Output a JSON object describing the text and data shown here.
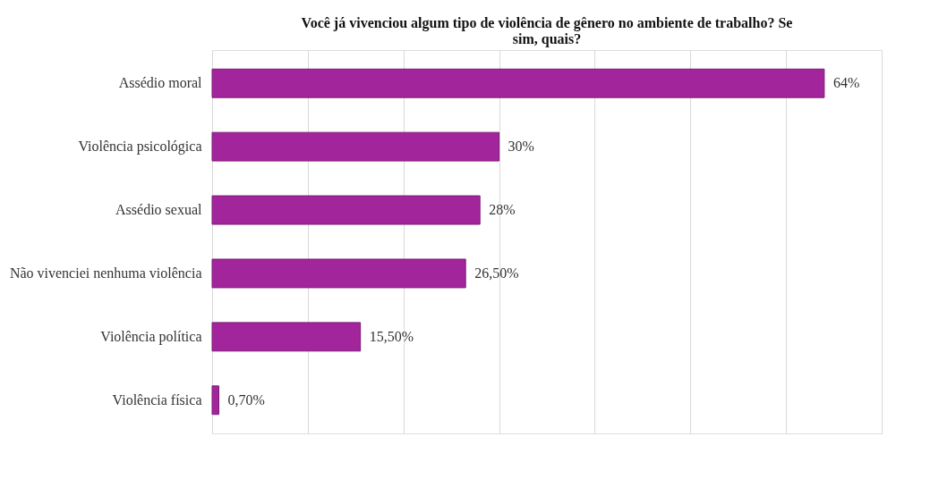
{
  "chart_data": {
    "type": "bar",
    "orientation": "horizontal",
    "title": "Você já vivenciou algum tipo de violência de gênero no ambiente de trabalho? Se sim, quais?",
    "categories": [
      "Assédio moral",
      "Violência psicológica",
      "Assédio sexual",
      "Não vivenciei nenhuma violência",
      "Violência política",
      "Violência física"
    ],
    "values": [
      64,
      30,
      28,
      26.5,
      15.5,
      0.7
    ],
    "value_labels": [
      "64%",
      "30%",
      "28%",
      "26,50%",
      "15,50%",
      "0,70%"
    ],
    "color": "#a3259c",
    "xlim": [
      0,
      70
    ],
    "xticks": [
      {
        "value": 0,
        "label": null
      },
      {
        "value": 10,
        "label": null
      },
      {
        "value": 20,
        "label": null
      },
      {
        "value": 30,
        "label": null
      },
      {
        "value": 40,
        "label": null
      },
      {
        "value": 50,
        "label": null
      },
      {
        "value": 60,
        "label": null
      },
      {
        "value": 70,
        "label": null
      }
    ],
    "grid": "x",
    "tick_labels": "y"
  }
}
